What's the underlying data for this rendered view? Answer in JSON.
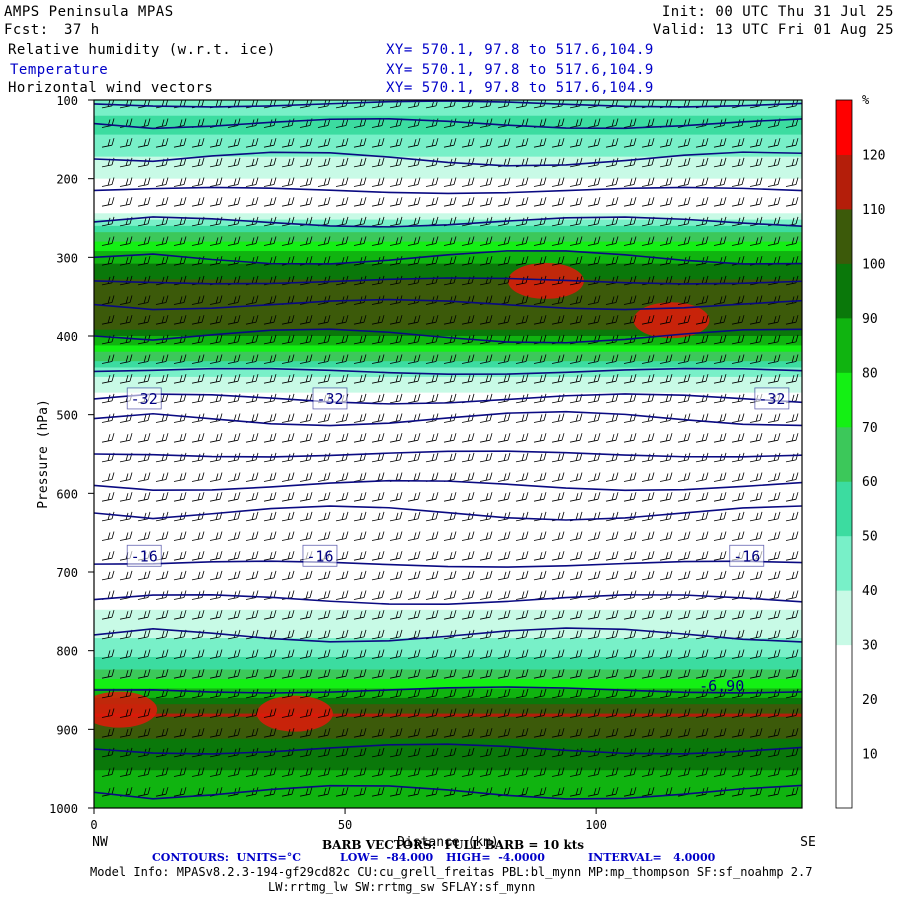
{
  "header": {
    "model": "AMPS Peninsula MPAS",
    "fcst_label": "Fcst:",
    "fcst_value": "37 h",
    "init": "Init: 00 UTC Thu 31 Jul 25",
    "valid": "Valid: 13 UTC Fri 01 Aug 25",
    "fields": [
      {
        "name": "Relative humidity (w.r.t. ice)",
        "xy": "XY= 570.1, 97.8 to 517.6,104.9",
        "color": "#000000"
      },
      {
        "name": "Temperature",
        "xy": "XY= 570.1, 97.8 to 517.6,104.9",
        "color": "#0000c8"
      },
      {
        "name": "Horizontal wind vectors",
        "xy": "XY= 570.1, 97.8 to 517.6,104.9",
        "color": "#000000"
      }
    ]
  },
  "chart_data": {
    "type": "heatmap",
    "title": "",
    "xlabel": "Distance (km)",
    "ylabel": "Pressure (hPa)",
    "xlim": [
      0,
      141
    ],
    "ylim": [
      1000,
      100
    ],
    "x_ticks": [
      "0",
      "50",
      "100"
    ],
    "x_tick_values": [
      0,
      50,
      100
    ],
    "y_ticks": [
      "100",
      "200",
      "300",
      "400",
      "500",
      "600",
      "700",
      "800",
      "900",
      "1000"
    ],
    "y_tick_values": [
      100,
      200,
      300,
      400,
      500,
      600,
      700,
      800,
      900,
      1000
    ],
    "x_end_labels": {
      "left": "NW",
      "right": "SE"
    },
    "colorbar": {
      "unit": "%",
      "levels": [
        10,
        20,
        30,
        40,
        50,
        60,
        70,
        80,
        90,
        100,
        110,
        120
      ],
      "labels": [
        "10",
        "20",
        "30",
        "40",
        "50",
        "60",
        "70",
        "80",
        "90",
        "100",
        "110",
        "120"
      ],
      "colors": [
        "#ffffff",
        "#ffffff",
        "#ffffff",
        "#c8fae6",
        "#78f0c8",
        "#3cdca0",
        "#3cc85a",
        "#14f014",
        "#10b410",
        "#0a780a",
        "#3c5a0a",
        "#b41e0a",
        "#ff0000"
      ]
    },
    "rh_profile": {
      "pressure": [
        100,
        130,
        160,
        200,
        240,
        270,
        300,
        330,
        360,
        390,
        420,
        450,
        480,
        510,
        550,
        600,
        650,
        700,
        750,
        800,
        830,
        860,
        880,
        910,
        950,
        1000
      ],
      "rh": [
        40,
        55,
        45,
        30,
        25,
        60,
        85,
        100,
        108,
        100,
        70,
        40,
        25,
        15,
        12,
        12,
        15,
        20,
        30,
        45,
        65,
        90,
        112,
        100,
        90,
        85
      ]
    },
    "rh_maxima": [
      {
        "x": 90,
        "p": 330,
        "rh": 115
      },
      {
        "x": 115,
        "p": 380,
        "rh": 115
      },
      {
        "x": 40,
        "p": 880,
        "rh": 115
      },
      {
        "x": 5,
        "p": 875,
        "rh": 115
      }
    ],
    "temperature_contours": {
      "units": "°C",
      "interval": 4.0,
      "levels": [
        -84,
        -80,
        -76,
        -72,
        -68,
        -64,
        -60,
        -56,
        -52,
        -48,
        -44,
        -40,
        -36,
        -32,
        -28,
        -24,
        -20,
        -16,
        -12,
        -8,
        -4
      ],
      "line_pressures": [
        105,
        130,
        175,
        215,
        255,
        300,
        330,
        360,
        400,
        445,
        480,
        505,
        550,
        590,
        625,
        690,
        735,
        780,
        850,
        925,
        980
      ],
      "highlighted": [
        {
          "label": "-32",
          "x": [
            10,
            47,
            135
          ],
          "p": 480
        },
        {
          "label": "-16",
          "x": [
            10,
            45,
            130
          ],
          "p": 680
        },
        {
          "label": "-6.90",
          "x": [
            125
          ],
          "p": 845
        }
      ]
    },
    "barb_rows_hpa": [
      110,
      135,
      160,
      185,
      210,
      235,
      260,
      285,
      310,
      335,
      360,
      385,
      410,
      435,
      460,
      485,
      510,
      535,
      560,
      585,
      610,
      635,
      660,
      685,
      710,
      735,
      760,
      785,
      810,
      835,
      860,
      885,
      910,
      935,
      960,
      985
    ]
  },
  "footer": {
    "barb": "BARB VECTORS:  FULL BARB = 10 kts",
    "contours_label": "CONTOURS:  UNITS=°C",
    "low": "LOW=  -84.000",
    "high": "HIGH=  -4.0000",
    "interval": "INTERVAL=   4.0000",
    "model_info": "Model Info: MPASv8.2.3-194-gf29cd82c CU:cu_grell_freitas PBL:bl_mynn MP:mp_thompson SF:sf_noahmp 2.7",
    "physics": "LW:rrtmg_lw SW:rrtmg_sw SFLAY:sf_mynn"
  },
  "colors": {
    "contour": "#0a0a82",
    "rh_max": "#e01a0a",
    "label_text": "#000080"
  }
}
